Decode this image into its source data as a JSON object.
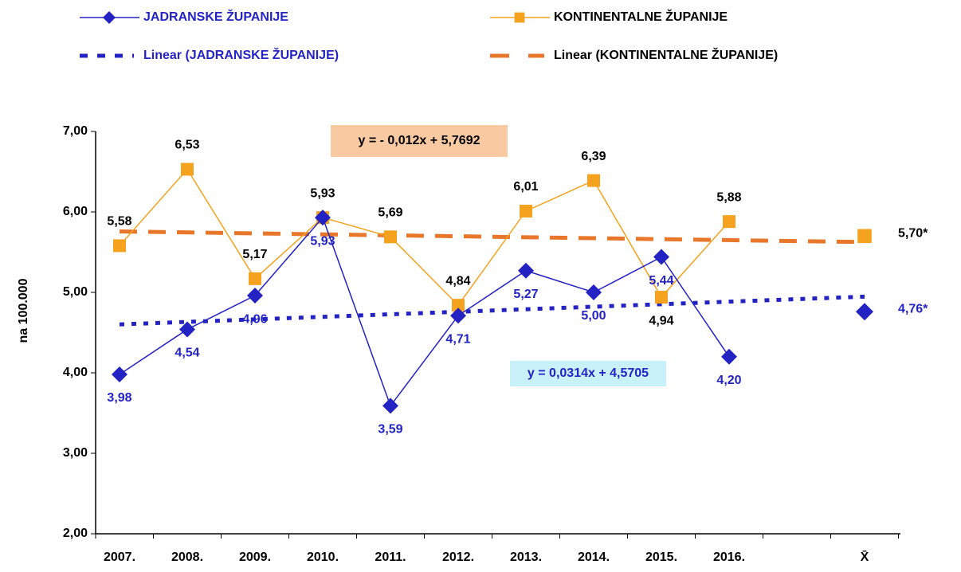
{
  "chart_data": {
    "type": "line",
    "y_label": "na 100.000",
    "categories": [
      "2007.",
      "2008.",
      "2009.",
      "2010.",
      "2011.",
      "2012.",
      "2013.",
      "2014.",
      "2015.",
      "2016.",
      null,
      "X̄"
    ],
    "series": [
      {
        "name": "JADRANSKE ŽUPANIJE",
        "color": "#2323c4",
        "marker": "diamond",
        "values": [
          3.98,
          4.54,
          4.96,
          5.93,
          3.59,
          4.71,
          5.27,
          5.0,
          5.44,
          4.2,
          null,
          4.76
        ],
        "value_labels": [
          "3,98",
          "4,54",
          "4,96",
          "5,93",
          "3,59",
          "4,71",
          "5,27",
          "5,00",
          "5,44",
          "4,20",
          null,
          "4,76*"
        ]
      },
      {
        "name": "KONTINENTALNE ŽUPANIJE",
        "color": "#f5a21e",
        "marker": "square",
        "values": [
          5.58,
          6.53,
          5.17,
          5.93,
          5.69,
          4.84,
          6.01,
          6.39,
          4.94,
          5.88,
          null,
          5.7
        ],
        "value_labels": [
          "5,58",
          "6,53",
          "5,17",
          "5,93",
          "5,69",
          "4,84",
          "6,01",
          "6,39",
          "4,94",
          "5,88",
          null,
          "5,70*"
        ]
      }
    ],
    "trendlines": [
      {
        "name": "Linear (JADRANSKE ŽUPANIJE)",
        "color": "#2323c4",
        "style": "dotted",
        "slope": 0.0314,
        "intercept": 4.5705,
        "equation": "y = 0,0314x + 4,5705",
        "box_color": "#c9f1fa"
      },
      {
        "name": "Linear (KONTINENTALNE ŽUPANIJE)",
        "color": "#e8772b",
        "style": "dashed",
        "slope": -0.012,
        "intercept": 5.7692,
        "equation": "y = - 0,012x + 5,7692",
        "box_color": "#f9c9a2"
      }
    ],
    "ylim": [
      2,
      7
    ],
    "yticks": [
      {
        "value": 2,
        "label": "2,00"
      },
      {
        "value": 3,
        "label": "3,00"
      },
      {
        "value": 4,
        "label": "4,00"
      },
      {
        "value": 5,
        "label": "5,00"
      },
      {
        "value": 6,
        "label": "6,00"
      },
      {
        "value": 7,
        "label": "7,00"
      }
    ]
  }
}
